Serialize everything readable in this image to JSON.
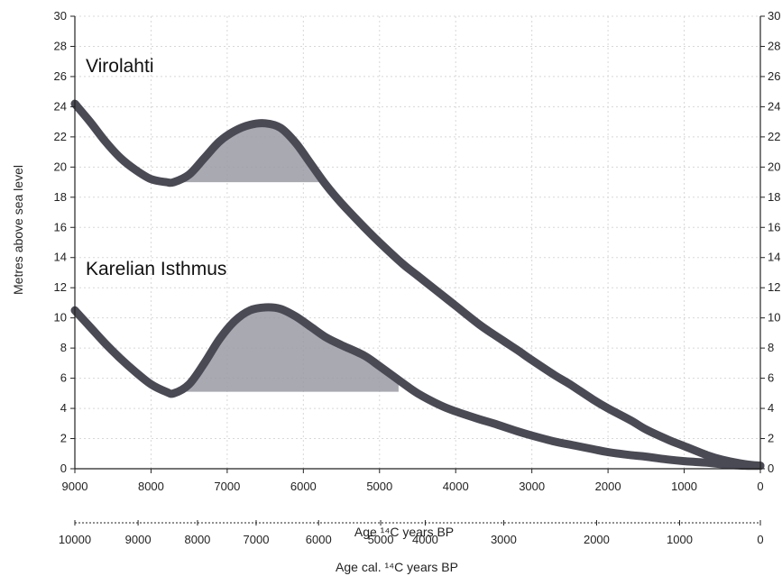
{
  "chart_data": {
    "type": "line",
    "xlabel": "Age ¹⁴C years BP",
    "x2label": "Age cal. ¹⁴C years BP",
    "ylabel": "Metres above sea level",
    "xlim": [
      9000,
      0
    ],
    "x_reversed": true,
    "ylim": [
      0,
      30
    ],
    "grid": true,
    "x_ticks": [
      9000,
      8000,
      7000,
      6000,
      5000,
      4000,
      3000,
      2000,
      1000,
      0
    ],
    "y_ticks": [
      0,
      2,
      4,
      6,
      8,
      10,
      12,
      14,
      16,
      18,
      20,
      22,
      24,
      26,
      28,
      30
    ],
    "x2_tick_labels": [
      "10000",
      "9000",
      "8000",
      "7000",
      "6000",
      "5000",
      "4000",
      "3000",
      "2000",
      "1000",
      "0"
    ],
    "x2_ticks_at_primary": [
      9000,
      8170,
      7390,
      6620,
      5800,
      4985,
      4400,
      3370,
      2150,
      1060,
      0
    ],
    "series": [
      {
        "name": "Virolahti",
        "x": [
          9000,
          8800,
          8600,
          8400,
          8200,
          8000,
          7800,
          7700,
          7500,
          7300,
          7100,
          6900,
          6700,
          6500,
          6300,
          6100,
          5900,
          5700,
          5500,
          5200,
          5000,
          4700,
          4500,
          4200,
          4000,
          3700,
          3500,
          3200,
          3000,
          2700,
          2500,
          2200,
          2000,
          1700,
          1500,
          1200,
          1000,
          700,
          500,
          200,
          0
        ],
        "y": [
          24.2,
          23.0,
          21.7,
          20.6,
          19.8,
          19.2,
          19.0,
          19.0,
          19.5,
          20.6,
          21.7,
          22.4,
          22.8,
          22.9,
          22.6,
          21.6,
          20.2,
          18.8,
          17.6,
          16.0,
          15.0,
          13.6,
          12.8,
          11.6,
          10.8,
          9.6,
          8.9,
          7.9,
          7.2,
          6.2,
          5.6,
          4.6,
          4.0,
          3.2,
          2.6,
          1.9,
          1.5,
          0.9,
          0.6,
          0.3,
          0.2
        ],
        "shaded_region": {
          "y_base": 19.0,
          "x_start": 7600,
          "x_end": 5550
        }
      },
      {
        "name": "Karelian Isthmus",
        "x": [
          9000,
          8800,
          8600,
          8400,
          8200,
          8000,
          7800,
          7700,
          7500,
          7300,
          7100,
          6900,
          6700,
          6500,
          6300,
          6100,
          5900,
          5700,
          5500,
          5200,
          5000,
          4700,
          4500,
          4200,
          4000,
          3700,
          3500,
          3200,
          3000,
          2700,
          2500,
          2200,
          2000,
          1700,
          1500,
          1200,
          1000,
          700,
          500,
          200,
          0
        ],
        "y": [
          10.5,
          9.4,
          8.3,
          7.3,
          6.4,
          5.6,
          5.1,
          5.0,
          5.6,
          7.0,
          8.6,
          9.8,
          10.5,
          10.7,
          10.6,
          10.1,
          9.4,
          8.7,
          8.2,
          7.5,
          6.8,
          5.7,
          5.0,
          4.2,
          3.8,
          3.3,
          3.0,
          2.5,
          2.2,
          1.8,
          1.6,
          1.3,
          1.1,
          0.9,
          0.8,
          0.6,
          0.5,
          0.4,
          0.3,
          0.2,
          0.2
        ],
        "shaded_region": {
          "y_base": 5.1,
          "x_start": 7650,
          "x_end": 4750
        }
      }
    ],
    "colors": {
      "line": "#4a4a55",
      "fill": "#9a9aa4",
      "grid": "#d8d8d8",
      "axis": "#222222"
    }
  }
}
